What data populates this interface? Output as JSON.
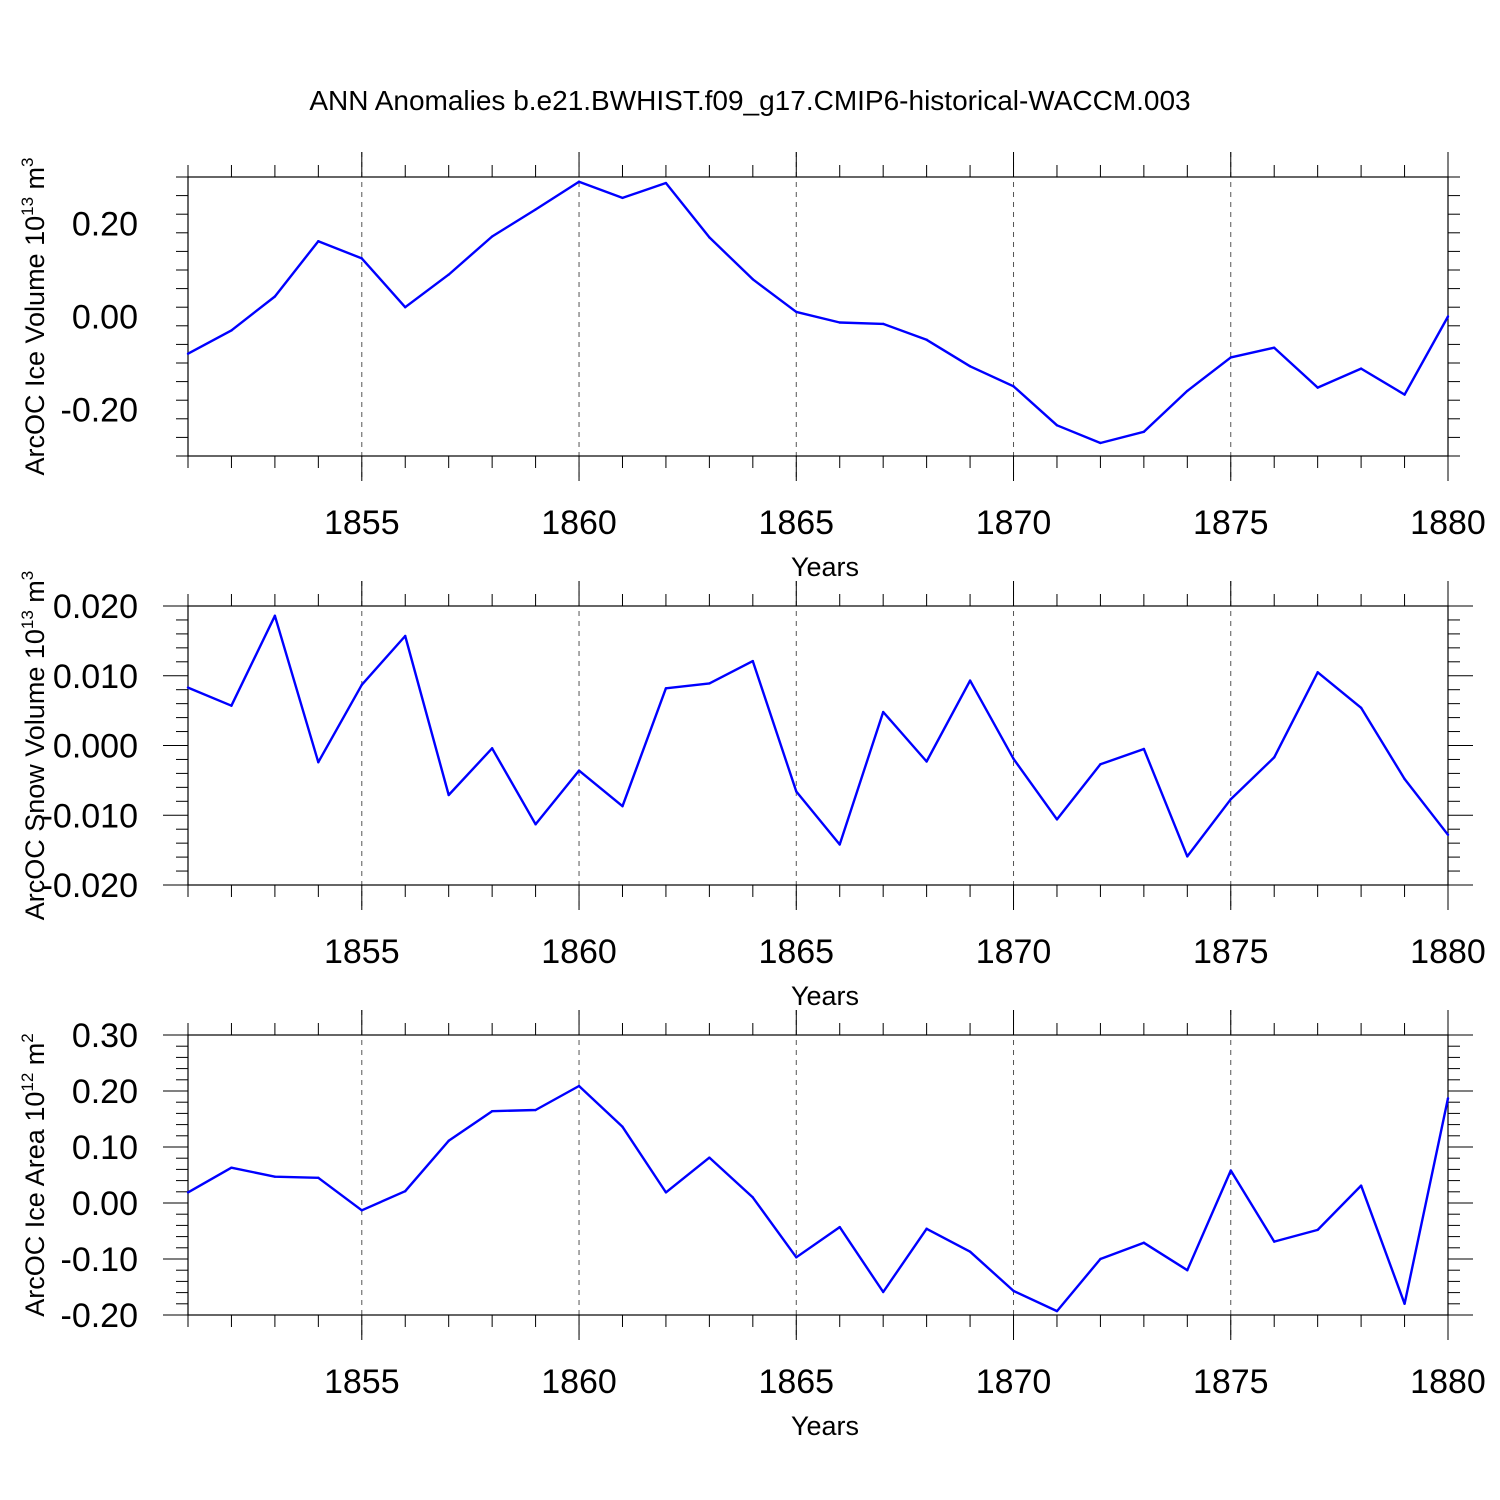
{
  "title": "ANN Anomalies b.e21.BWHIST.f09_g17.CMIP6-historical-WACCM.003",
  "colors": {
    "series": "#0000ff",
    "axis": "#000000",
    "grid": "#555555"
  },
  "chart_data": [
    {
      "type": "line",
      "ylabel": {
        "base": "ArcOC Ice Volume 10",
        "exp": "13",
        "unit": " m",
        "unit_exp": "3"
      },
      "xlabel": "Years",
      "xlim": [
        1851,
        1880
      ],
      "ylim": [
        -0.3,
        0.3
      ],
      "xticks": [
        1855,
        1860,
        1865,
        1870,
        1875,
        1880
      ],
      "xtick_labels": [
        "1855",
        "1860",
        "1865",
        "1870",
        "1875",
        "1880"
      ],
      "yticks": [
        -0.2,
        0.0,
        0.2
      ],
      "ytick_labels": [
        "-0.20",
        "0.00",
        "0.20"
      ],
      "grid": "vertical dashed at major x ticks",
      "x": [
        1851,
        1852,
        1853,
        1854,
        1855,
        1856,
        1857,
        1858,
        1859,
        1860,
        1861,
        1862,
        1863,
        1864,
        1865,
        1866,
        1867,
        1868,
        1869,
        1870,
        1871,
        1872,
        1873,
        1874,
        1875,
        1876,
        1877,
        1878,
        1879,
        1880
      ],
      "y": [
        -0.08,
        -0.03,
        0.043,
        0.162,
        0.125,
        0.02,
        0.09,
        0.172,
        0.23,
        0.29,
        0.255,
        0.287,
        0.17,
        0.08,
        0.01,
        -0.013,
        -0.016,
        -0.05,
        -0.107,
        -0.15,
        -0.234,
        -0.272,
        -0.248,
        -0.16,
        -0.088,
        -0.067,
        -0.153,
        -0.112,
        -0.168,
        0.0
      ]
    },
    {
      "type": "line",
      "ylabel": {
        "base": "ArcOC Snow Volume 10",
        "exp": "13",
        "unit": " m",
        "unit_exp": "3"
      },
      "xlabel": "Years",
      "xlim": [
        1851,
        1880
      ],
      "ylim": [
        -0.02,
        0.02
      ],
      "xticks": [
        1855,
        1860,
        1865,
        1870,
        1875,
        1880
      ],
      "xtick_labels": [
        "1855",
        "1860",
        "1865",
        "1870",
        "1875",
        "1880"
      ],
      "yticks": [
        -0.02,
        -0.01,
        0.0,
        0.01,
        0.02
      ],
      "ytick_labels": [
        "-0.020",
        "-0.010",
        "0.000",
        "0.010",
        "0.020"
      ],
      "grid": "vertical dashed at major x ticks",
      "x": [
        1851,
        1852,
        1853,
        1854,
        1855,
        1856,
        1857,
        1858,
        1859,
        1860,
        1861,
        1862,
        1863,
        1864,
        1865,
        1866,
        1867,
        1868,
        1869,
        1870,
        1871,
        1872,
        1873,
        1874,
        1875,
        1876,
        1877,
        1878,
        1879,
        1880
      ],
      "y": [
        0.0083,
        0.0057,
        0.0186,
        -0.0024,
        0.0087,
        0.0157,
        -0.0071,
        -0.0004,
        -0.0113,
        -0.0036,
        -0.0087,
        0.0082,
        0.0089,
        0.0121,
        -0.0066,
        -0.0142,
        0.0048,
        -0.0023,
        0.0093,
        -0.0019,
        -0.0106,
        -0.0027,
        -0.0005,
        -0.0159,
        -0.0077,
        -0.0017,
        0.0105,
        0.0054,
        -0.0048,
        -0.0128
      ]
    },
    {
      "type": "line",
      "ylabel": {
        "base": "ArcOC Ice Area 10",
        "exp": "12",
        "unit": " m",
        "unit_exp": "2"
      },
      "xlabel": "Years",
      "xlim": [
        1851,
        1880
      ],
      "ylim": [
        -0.2,
        0.3
      ],
      "xticks": [
        1855,
        1860,
        1865,
        1870,
        1875,
        1880
      ],
      "xtick_labels": [
        "1855",
        "1860",
        "1865",
        "1870",
        "1875",
        "1880"
      ],
      "yticks": [
        -0.2,
        -0.1,
        0.0,
        0.1,
        0.2,
        0.3
      ],
      "ytick_labels": [
        "-0.20",
        "-0.10",
        "0.00",
        "0.10",
        "0.20",
        "0.30"
      ],
      "grid": "vertical dashed at major x ticks",
      "x": [
        1851,
        1852,
        1853,
        1854,
        1855,
        1856,
        1857,
        1858,
        1859,
        1860,
        1861,
        1862,
        1863,
        1864,
        1865,
        1866,
        1867,
        1868,
        1869,
        1870,
        1871,
        1872,
        1873,
        1874,
        1875,
        1876,
        1877,
        1878,
        1879,
        1880
      ],
      "y": [
        0.019,
        0.063,
        0.047,
        0.045,
        -0.013,
        0.021,
        0.111,
        0.164,
        0.166,
        0.209,
        0.136,
        0.019,
        0.081,
        0.01,
        -0.097,
        -0.043,
        -0.159,
        -0.046,
        -0.087,
        -0.157,
        -0.193,
        -0.1,
        -0.071,
        -0.12,
        0.058,
        -0.069,
        -0.048,
        0.031,
        -0.18,
        0.187
      ]
    }
  ]
}
